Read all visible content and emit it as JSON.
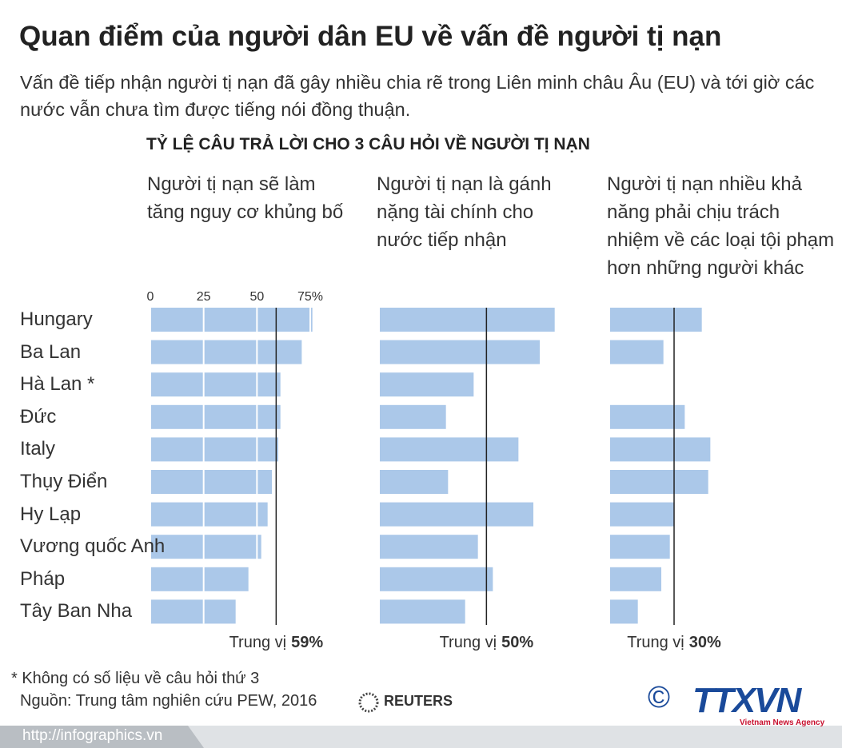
{
  "title": "Quan điểm của người dân EU về vấn đề người tị nạn",
  "subtitle": "Vấn đề tiếp nhận người tị nạn đã gây nhiều chia rẽ trong Liên minh châu Âu (EU) và tới giờ các nước vẫn chưa tìm được tiếng nói đồng thuận.",
  "section_title": "TỶ LỆ CÂU TRẢ LỜI CHO 3 CÂU HỎI VỀ NGƯỜI TỊ NẠN",
  "chart_data": [
    {
      "type": "bar",
      "orientation": "horizontal",
      "title": "Người tị nạn sẽ làm tăng nguy cơ khủng bố",
      "categories": [
        "Hungary",
        "Ba Lan",
        "Hà Lan *",
        "Đức",
        "Italy",
        "Thụy Điển",
        "Hy Lạp",
        "Vương quốc Anh",
        "Pháp",
        "Tây Ban Nha"
      ],
      "values": [
        76,
        71,
        61,
        61,
        60,
        57,
        55,
        52,
        46,
        40
      ],
      "color": "#abc8e9",
      "xlim": [
        0,
        100
      ],
      "xticks": [
        0,
        25,
        50,
        {
          "value": 75,
          "label": "75%"
        }
      ],
      "grid": true,
      "median": 59,
      "median_label": "Trung vị",
      "median_value_label": "59%"
    },
    {
      "type": "bar",
      "orientation": "horizontal",
      "title": "Người tị nạn là gánh nặng tài chính cho nước tiếp nhận",
      "values": [
        82,
        75,
        44,
        31,
        65,
        32,
        72,
        46,
        53,
        40
      ],
      "color": "#abc8e9",
      "xlim": [
        0,
        100
      ],
      "grid": false,
      "median": 50,
      "median_label": "Trung vị",
      "median_value_label": "50%"
    },
    {
      "type": "bar",
      "orientation": "horizontal",
      "title": "Người tị nạn nhiều khả năng phải chịu trách nhiệm về các loại tội phạm hơn những người khác",
      "values": [
        43,
        25,
        null,
        35,
        47,
        46,
        30,
        28,
        24,
        13
      ],
      "color": "#abc8e9",
      "xlim": [
        0,
        100
      ],
      "grid": false,
      "median": 30,
      "median_label": "Trung vị",
      "median_value_label": "30%"
    }
  ],
  "footnote": "* Không có số liệu về câu hỏi thứ 3",
  "source": "Nguồn: Trung tâm nghiên cứu PEW, 2016",
  "source_logo": "REUTERS",
  "copyright": "©",
  "agency": "TTXVN",
  "agency_subtitle": "Vietnam News Agency",
  "url": "http://infographics.vn"
}
